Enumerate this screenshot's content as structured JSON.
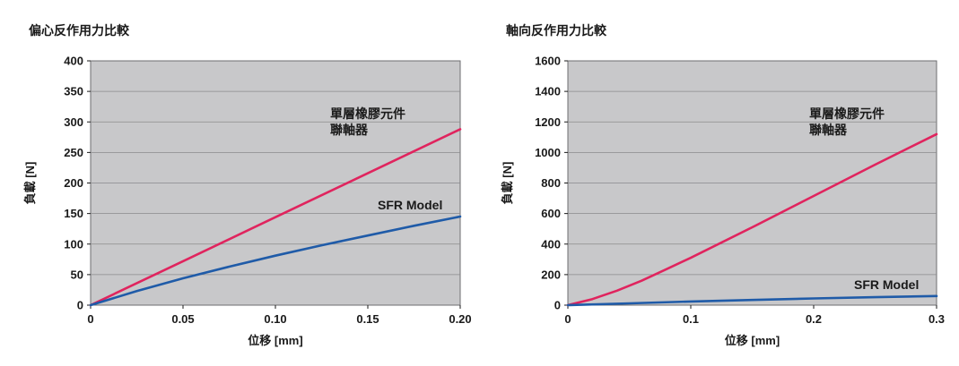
{
  "chart_data": [
    {
      "type": "line",
      "title": "偏心反作用力比較",
      "xlabel": "位移 [mm]",
      "ylabel": "負載 [N]",
      "xlim": [
        0,
        0.2
      ],
      "ylim": [
        0,
        400
      ],
      "x_ticks": [
        0,
        0.05,
        0.1,
        0.15,
        0.2
      ],
      "x_tick_labels": [
        "0",
        "0.05",
        "0.10",
        "0.15",
        "0.20"
      ],
      "y_ticks": [
        0,
        50,
        100,
        150,
        200,
        250,
        300,
        350,
        400
      ],
      "y_tick_labels": [
        "0",
        "50",
        "100",
        "150",
        "200",
        "250",
        "300",
        "350",
        "400"
      ],
      "background_color": "#c8c8ca",
      "grid": "horizontal",
      "series": [
        {
          "name": "單層橡膠元件聯軸器",
          "color": "#e0245e",
          "x": [
            0,
            0.05,
            0.1,
            0.15,
            0.2
          ],
          "y": [
            0,
            72,
            144,
            216,
            288
          ],
          "label_lines": [
            "單層橡膠元件",
            "聯軸器"
          ]
        },
        {
          "name": "SFR Model",
          "color": "#1f5ba8",
          "x": [
            0,
            0.025,
            0.05,
            0.075,
            0.1,
            0.125,
            0.15,
            0.175,
            0.2
          ],
          "y": [
            0,
            23,
            44,
            63,
            81,
            98,
            114,
            130,
            145
          ],
          "label_lines": [
            "SFR Model"
          ]
        }
      ]
    },
    {
      "type": "line",
      "title": "軸向反作用力比較",
      "xlabel": "位移 [mm]",
      "ylabel": "負載 [N]",
      "xlim": [
        0,
        0.3
      ],
      "ylim": [
        0,
        1600
      ],
      "x_ticks": [
        0,
        0.1,
        0.2,
        0.3
      ],
      "x_tick_labels": [
        "0",
        "0.1",
        "0.2",
        "0.3"
      ],
      "y_ticks": [
        0,
        200,
        400,
        600,
        800,
        1000,
        1200,
        1400,
        1600
      ],
      "y_tick_labels": [
        "0",
        "200",
        "400",
        "600",
        "800",
        "1000",
        "1200",
        "1400",
        "1600"
      ],
      "background_color": "#c8c8ca",
      "grid": "horizontal",
      "series": [
        {
          "name": "單層橡膠元件聯軸器",
          "color": "#e0245e",
          "x": [
            0,
            0.02,
            0.04,
            0.06,
            0.08,
            0.1,
            0.15,
            0.2,
            0.25,
            0.3
          ],
          "y": [
            0,
            40,
            95,
            160,
            235,
            310,
            510,
            715,
            920,
            1120
          ],
          "label_lines": [
            "單層橡膠元件",
            "聯軸器"
          ]
        },
        {
          "name": "SFR Model",
          "color": "#1f5ba8",
          "x": [
            0,
            0.05,
            0.1,
            0.15,
            0.2,
            0.25,
            0.3
          ],
          "y": [
            0,
            12,
            24,
            34,
            44,
            52,
            60
          ],
          "label_lines": [
            "SFR Model"
          ]
        }
      ]
    }
  ]
}
